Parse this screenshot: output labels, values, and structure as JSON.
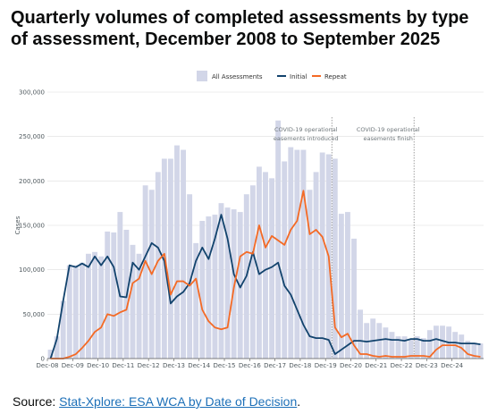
{
  "title": "Quarterly volumes of completed assessments by type of assessment, December 2008 to September 2025",
  "source": {
    "label": "Source: ",
    "link_text": "Stat-Xplore: ESA WCA by Date of Decision",
    "suffix": "."
  },
  "colors": {
    "bars": "#d2d6e8",
    "initial": "#12436d",
    "repeat": "#f46a25",
    "grid": "#dddddd",
    "annotation_line": "#888888"
  },
  "chart_data": {
    "type": "bar+line",
    "ylabel": "Cases",
    "ylim": [
      0,
      300000
    ],
    "yticks": [
      0,
      50000,
      100000,
      150000,
      200000,
      250000,
      300000
    ],
    "ytick_labels": [
      "0",
      "50,000",
      "100,000",
      "150,000",
      "200,000",
      "250,000",
      "300,000"
    ],
    "xtick_labels": [
      "Dec-08",
      "Dec-09",
      "Dec-10",
      "Dec-11",
      "Dec-12",
      "Dec-13",
      "Dec-14",
      "Dec-15",
      "Dec-16",
      "Dec-17",
      "Dec-18",
      "Dec-19",
      "Dec-20",
      "Dec-21",
      "Dec-22",
      "Dec-23",
      "Dec-24"
    ],
    "legend": {
      "position": "top",
      "entries": [
        "All Assessments",
        "Initial",
        "Repeat"
      ]
    },
    "annotations": [
      {
        "text_lines": [
          "COVID-19 operational",
          "easements introduced"
        ],
        "at_quarter": 45
      },
      {
        "text_lines": [
          "COVID-19 operational",
          "easements finish"
        ],
        "at_quarter": 58
      }
    ],
    "series": [
      {
        "name": "All Assessments",
        "kind": "bar",
        "values": [
          10000,
          25000,
          65000,
          105000,
          105000,
          108000,
          118000,
          120000,
          115000,
          143000,
          142000,
          165000,
          145000,
          128000,
          118000,
          195000,
          190000,
          210000,
          225000,
          225000,
          240000,
          235000,
          185000,
          130000,
          155000,
          160000,
          162000,
          175000,
          170000,
          168000,
          165000,
          185000,
          195000,
          216000,
          210000,
          203000,
          268000,
          222000,
          238000,
          235000,
          235000,
          190000,
          210000,
          232000,
          230000,
          225000,
          163000,
          165000,
          135000,
          55000,
          40000,
          45000,
          40000,
          35000,
          30000,
          25000,
          25000,
          22000,
          25000,
          23000,
          32000,
          37000,
          37000,
          36000,
          30000,
          27000,
          20000,
          18000,
          17000
        ]
      },
      {
        "name": "Initial",
        "kind": "line",
        "values": [
          0,
          22000,
          65000,
          105000,
          103000,
          107000,
          103000,
          115000,
          105000,
          115000,
          103000,
          70000,
          69000,
          108000,
          100000,
          115000,
          130000,
          125000,
          110000,
          62000,
          70000,
          75000,
          85000,
          110000,
          125000,
          112000,
          135000,
          162000,
          135000,
          95000,
          80000,
          93000,
          120000,
          95000,
          100000,
          103000,
          108000,
          82000,
          72000,
          55000,
          38000,
          25000,
          23000,
          23000,
          21000,
          5000,
          10000,
          15000,
          20000,
          20000,
          19000,
          20000,
          21000,
          22000,
          21000,
          21000,
          20000,
          22000,
          22000,
          20000,
          20000,
          22000,
          20000,
          18000,
          18000,
          17000,
          17000,
          17000,
          16000
        ]
      },
      {
        "name": "Repeat",
        "kind": "line",
        "values": [
          0,
          0,
          0,
          2000,
          5000,
          12000,
          20000,
          30000,
          35000,
          50000,
          48000,
          52000,
          55000,
          85000,
          90000,
          110000,
          95000,
          110000,
          118000,
          72000,
          87000,
          87000,
          82000,
          90000,
          55000,
          42000,
          35000,
          33000,
          35000,
          80000,
          115000,
          120000,
          118000,
          150000,
          125000,
          138000,
          133000,
          128000,
          145000,
          155000,
          189000,
          140000,
          145000,
          137000,
          115000,
          35000,
          24000,
          28000,
          15000,
          5000,
          5000,
          3000,
          2000,
          3000,
          2000,
          2000,
          2000,
          3000,
          3000,
          3000,
          2000,
          10000,
          15000,
          15000,
          15000,
          12000,
          5000,
          3000,
          2000
        ]
      }
    ]
  }
}
